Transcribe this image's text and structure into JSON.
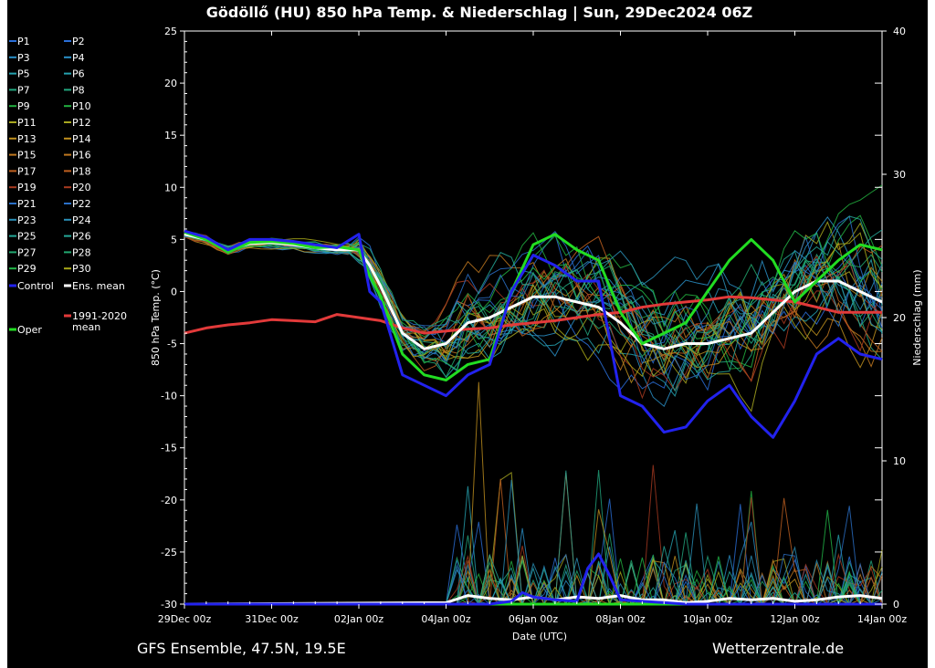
{
  "chart_data": {
    "type": "line",
    "title": "Gödöllő  (HU)  850 hPa Temp. & Niederschlag | Sun, 29Dec2024 06Z",
    "footer_left": "GFS Ensemble, 47.5N, 19.5E",
    "footer_right": "Wetterzentrale.de",
    "xlabel": "Date (UTC)",
    "ylabel": "850 hPa Temp. (°C)",
    "y2label": "Niederschlag (mm)",
    "ylim": [
      -30,
      25
    ],
    "y2lim": [
      0,
      40
    ],
    "x_range_days": [
      0,
      16
    ],
    "x_ticks": [
      {
        "day": 0,
        "label": "29Dec 00z"
      },
      {
        "day": 2,
        "label": "31Dec 00z"
      },
      {
        "day": 4,
        "label": "02Jan 00z"
      },
      {
        "day": 6,
        "label": "04Jan 00z"
      },
      {
        "day": 8,
        "label": "06Jan 00z"
      },
      {
        "day": 10,
        "label": "08Jan 00z"
      },
      {
        "day": 12,
        "label": "10Jan 00z"
      },
      {
        "day": 14,
        "label": "12Jan 00z"
      },
      {
        "day": 16,
        "label": "14Jan 00z"
      }
    ],
    "y_ticks": [
      "25",
      "20",
      "15",
      "10",
      "5",
      "0",
      "-5",
      "-10",
      "-15",
      "-20",
      "-25",
      "-30"
    ],
    "y2_ticks": [
      "40",
      "30",
      "20",
      "10",
      "0"
    ],
    "legend": {
      "members": [
        {
          "name": "P1",
          "color": "#2a6fd8"
        },
        {
          "name": "P2",
          "color": "#2a6fd8"
        },
        {
          "name": "P3",
          "color": "#2a90c8"
        },
        {
          "name": "P4",
          "color": "#2a90c8"
        },
        {
          "name": "P5",
          "color": "#25a2b0"
        },
        {
          "name": "P6",
          "color": "#25a2b0"
        },
        {
          "name": "P7",
          "color": "#22a880"
        },
        {
          "name": "P8",
          "color": "#22a880"
        },
        {
          "name": "P9",
          "color": "#22b040"
        },
        {
          "name": "P10",
          "color": "#22b040"
        },
        {
          "name": "P11",
          "color": "#a8a820"
        },
        {
          "name": "P12",
          "color": "#a8a820"
        },
        {
          "name": "P13",
          "color": "#c0901e"
        },
        {
          "name": "P14",
          "color": "#c0901e"
        },
        {
          "name": "P15",
          "color": "#c07820"
        },
        {
          "name": "P16",
          "color": "#c07820"
        },
        {
          "name": "P17",
          "color": "#c06020"
        },
        {
          "name": "P18",
          "color": "#c06020"
        },
        {
          "name": "P19",
          "color": "#a83a20"
        },
        {
          "name": "P20",
          "color": "#a83a20"
        },
        {
          "name": "P21",
          "color": "#2a70c8"
        },
        {
          "name": "P22",
          "color": "#2a70c8"
        },
        {
          "name": "P23",
          "color": "#2a90b8"
        },
        {
          "name": "P24",
          "color": "#2a90b8"
        },
        {
          "name": "P25",
          "color": "#25a898"
        },
        {
          "name": "P26",
          "color": "#25a898"
        },
        {
          "name": "P27",
          "color": "#22a870"
        },
        {
          "name": "P28",
          "color": "#22a870"
        },
        {
          "name": "P29",
          "color": "#22b848"
        },
        {
          "name": "P30",
          "color": "#a8a818"
        }
      ],
      "control": "Control",
      "ens_mean": "Ens. mean",
      "climate_line1": "1991-2020",
      "climate_line2": "mean",
      "oper": "Oper"
    },
    "series": {
      "control_temp": {
        "name": "Control",
        "color": "#2222ee",
        "x": [
          0,
          0.5,
          1,
          1.5,
          2,
          2.5,
          3,
          3.5,
          4,
          4.25,
          4.5,
          5,
          5.5,
          6,
          6.5,
          7,
          7.5,
          8,
          8.5,
          9,
          9.5,
          10,
          10.5,
          11,
          11.5,
          12,
          12.5,
          13,
          13.5,
          14,
          14.5,
          15,
          15.5,
          16
        ],
        "y": [
          5.8,
          5.2,
          4.0,
          5.0,
          5.0,
          4.8,
          4.5,
          4.2,
          5.5,
          0,
          -1,
          -8,
          -9,
          -10,
          -8,
          -7,
          0,
          3.5,
          2.5,
          1,
          1,
          -10,
          -11,
          -13.5,
          -13,
          -10.5,
          -9,
          -12,
          -14,
          -10.5,
          -6,
          -4.5,
          -6,
          -6.5
        ]
      },
      "oper_temp": {
        "name": "Oper",
        "color": "#22dd22",
        "x": [
          0,
          0.5,
          1,
          1.5,
          2,
          2.5,
          3,
          3.5,
          4,
          4.25,
          4.5,
          5,
          5.5,
          6,
          6.5,
          7,
          7.5,
          8,
          8.5,
          9,
          9.5,
          10,
          10.5,
          11,
          11.5,
          12,
          12.5,
          13,
          13.5,
          14,
          14.5,
          15,
          15.5,
          16
        ],
        "y": [
          5.7,
          5.0,
          3.8,
          4.7,
          4.8,
          4.6,
          4.2,
          4.3,
          4.0,
          1.5,
          -0.5,
          -6,
          -8,
          -8.5,
          -7,
          -6.5,
          0,
          4.5,
          5.5,
          4.0,
          3.0,
          -2,
          -5,
          -4,
          -3,
          0,
          3,
          5,
          3,
          -1,
          1,
          3,
          4.5,
          4
        ]
      },
      "ens_mean_temp": {
        "name": "Ens. mean",
        "color": "#ffffff",
        "x": [
          0,
          0.5,
          1,
          1.5,
          2,
          2.5,
          3,
          3.5,
          4,
          4.25,
          4.5,
          5,
          5.5,
          6,
          6.5,
          7,
          7.5,
          8,
          8.5,
          9,
          9.5,
          10,
          10.5,
          11,
          11.5,
          12,
          12.5,
          13,
          13.5,
          14,
          14.5,
          15,
          15.5,
          16
        ],
        "y": [
          5.5,
          5.0,
          4.0,
          4.6,
          4.7,
          4.5,
          4.2,
          4.0,
          4.0,
          2.5,
          0.5,
          -4,
          -5.5,
          -5,
          -3,
          -2.5,
          -1.5,
          -0.5,
          -0.5,
          -1,
          -1.5,
          -3,
          -5,
          -5.5,
          -5,
          -5,
          -4.5,
          -4,
          -2,
          0,
          1,
          1,
          0,
          -1
        ]
      },
      "climate_mean_temp": {
        "name": "1991-2020 mean",
        "color": "#e23a3a",
        "x": [
          0,
          0.5,
          1,
          1.5,
          2,
          2.5,
          3,
          3.5,
          4,
          4.5,
          5,
          5.5,
          6,
          6.5,
          7,
          7.5,
          8,
          8.5,
          9,
          9.5,
          10,
          10.5,
          11,
          11.5,
          12,
          12.5,
          13,
          13.5,
          14,
          14.5,
          15,
          15.5,
          16
        ],
        "y": [
          -4,
          -3.5,
          -3.2,
          -3,
          -2.7,
          -2.8,
          -2.9,
          -2.2,
          -2.5,
          -2.8,
          -3.5,
          -4,
          -3.8,
          -3.6,
          -3.5,
          -3.2,
          -3,
          -2.8,
          -2.5,
          -2.2,
          -2,
          -1.5,
          -1.2,
          -1,
          -0.8,
          -0.5,
          -0.6,
          -0.8,
          -1,
          -1.5,
          -2,
          -2,
          -2
        ]
      },
      "control_precip": {
        "name": "Control precip (mm)",
        "color": "#2222ee",
        "x": [
          0,
          7,
          7.5,
          7.75,
          8,
          8.5,
          9,
          9.25,
          9.5,
          9.75,
          10,
          10.5,
          11,
          11.5,
          12,
          12.5,
          13,
          14,
          15,
          16
        ],
        "y": [
          0,
          0,
          0.2,
          0.8,
          0.5,
          0.3,
          0.2,
          2.5,
          3.5,
          2,
          0.3,
          0.2,
          0.1,
          0,
          0,
          0,
          0,
          0,
          0,
          0
        ]
      },
      "ens_mean_precip": {
        "name": "Ens. mean precip (mm)",
        "color": "#ffffff",
        "x": [
          0,
          6,
          6.5,
          7,
          7.5,
          8,
          8.5,
          9,
          9.5,
          10,
          10.5,
          11,
          11.5,
          12,
          12.5,
          13,
          13.5,
          14,
          14.5,
          15,
          15.5,
          16
        ],
        "y": [
          0,
          0.1,
          0.6,
          0.4,
          0.3,
          0.5,
          0.3,
          0.5,
          0.4,
          0.6,
          0.3,
          0.3,
          0.1,
          0.2,
          0.4,
          0.3,
          0.4,
          0.2,
          0.3,
          0.5,
          0.6,
          0.4
        ]
      },
      "oper_precip": {
        "name": "Oper precip (mm)",
        "color": "#22dd22",
        "x": [
          0,
          16
        ],
        "y": [
          0,
          0
        ]
      }
    }
  }
}
